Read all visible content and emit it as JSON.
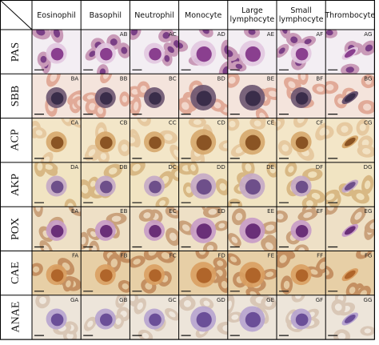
{
  "columns": [
    "Eosinophil",
    "Basophil",
    "Neutrophil",
    "Monocyte",
    "Large lymphocyte",
    "Small lymphocyte",
    "Thrombocyte"
  ],
  "rows": [
    {
      "stain": "PAS",
      "cells": [
        null,
        "AB",
        "AC",
        "AD",
        "AE",
        "AF",
        "AG"
      ]
    },
    {
      "stain": "SBB",
      "cells": [
        "BA",
        "BB",
        "BC",
        "BD",
        "BE",
        "BF",
        "BG"
      ]
    },
    {
      "stain": "ACP",
      "cells": [
        "CA",
        "CB",
        "CC",
        "CD",
        "CE",
        "CF",
        "CG"
      ]
    },
    {
      "stain": "AKP",
      "cells": [
        "DA",
        "DB",
        "DC",
        "DD",
        "DE",
        "DF",
        "DG"
      ]
    },
    {
      "stain": "POX",
      "cells": [
        "EA",
        "EB",
        "EC",
        "ED",
        "EE",
        "EF",
        "EG"
      ]
    },
    {
      "stain": "CAE",
      "cells": [
        "FA",
        "FB",
        "FC",
        "FD",
        "FE",
        "FF",
        "FG"
      ]
    },
    {
      "stain": "ANAE",
      "cells": [
        "GA",
        "GB",
        "GC",
        "GD",
        "GE",
        "GF",
        "GG"
      ]
    }
  ]
}
